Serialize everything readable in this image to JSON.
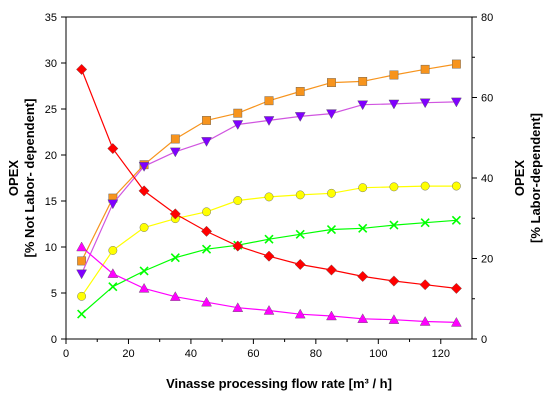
{
  "chart_data": {
    "type": "line",
    "xlabel": "Vinasse processing flow rate [m³ / h]",
    "ylabel_left": [
      "OPEX",
      "[% Not Labor- dependent]"
    ],
    "ylabel_right": [
      "OPEX",
      "[% Labor-dependent]"
    ],
    "xlim": [
      0,
      130
    ],
    "ylim_left": [
      0,
      35
    ],
    "ylim_right": [
      0,
      80
    ],
    "xticks": [
      0,
      20,
      40,
      60,
      80,
      100,
      120
    ],
    "yticks_left": [
      0,
      5,
      10,
      15,
      20,
      25,
      30,
      35
    ],
    "yticks_right": [
      0,
      20,
      40,
      60,
      80
    ],
    "grid": false,
    "legend": "none",
    "x": [
      5,
      15,
      25,
      35,
      45,
      55,
      65,
      75,
      85,
      95,
      105,
      115,
      125
    ],
    "series": [
      {
        "axis": "right",
        "marker": "square",
        "color": "#f7941d",
        "marker_color": "#f7941d",
        "values": [
          19.4,
          35.0,
          43.3,
          49.7,
          54.3,
          56.1,
          59.2,
          61.5,
          63.7,
          64.0,
          65.6,
          67.0,
          68.3
        ]
      },
      {
        "axis": "right",
        "marker": "triangle-down",
        "color": "#d055e0",
        "marker_color": "#8000ff",
        "values": [
          16.2,
          33.6,
          42.9,
          46.5,
          49.1,
          53.3,
          54.3,
          55.3,
          56.0,
          58.2,
          58.4,
          58.7,
          58.9
        ]
      },
      {
        "axis": "right",
        "marker": "circle",
        "color": "#ffff00",
        "marker_color": "#ffff00",
        "values": [
          10.6,
          22.0,
          27.7,
          29.9,
          31.6,
          34.4,
          35.3,
          35.8,
          36.2,
          37.6,
          37.8,
          38.0,
          38.0
        ]
      },
      {
        "axis": "right",
        "marker": "x",
        "color": "#00ff00",
        "marker_color": "#00ff00",
        "values": [
          6.2,
          13.0,
          16.9,
          20.2,
          22.3,
          23.3,
          24.8,
          26.0,
          27.2,
          27.5,
          28.3,
          28.9,
          29.5
        ]
      },
      {
        "axis": "left",
        "marker": "diamond",
        "color": "#ff0000",
        "marker_color": "#ff0000",
        "values": [
          29.3,
          20.7,
          16.1,
          13.6,
          11.7,
          10.1,
          9.0,
          8.1,
          7.5,
          6.8,
          6.3,
          5.9,
          5.5
        ]
      },
      {
        "axis": "left",
        "marker": "triangle-up",
        "color": "#ff00ff",
        "marker_color": "#ff00ff",
        "values": [
          10.0,
          7.1,
          5.5,
          4.6,
          4.0,
          3.4,
          3.1,
          2.7,
          2.5,
          2.2,
          2.1,
          1.9,
          1.8
        ]
      }
    ]
  }
}
